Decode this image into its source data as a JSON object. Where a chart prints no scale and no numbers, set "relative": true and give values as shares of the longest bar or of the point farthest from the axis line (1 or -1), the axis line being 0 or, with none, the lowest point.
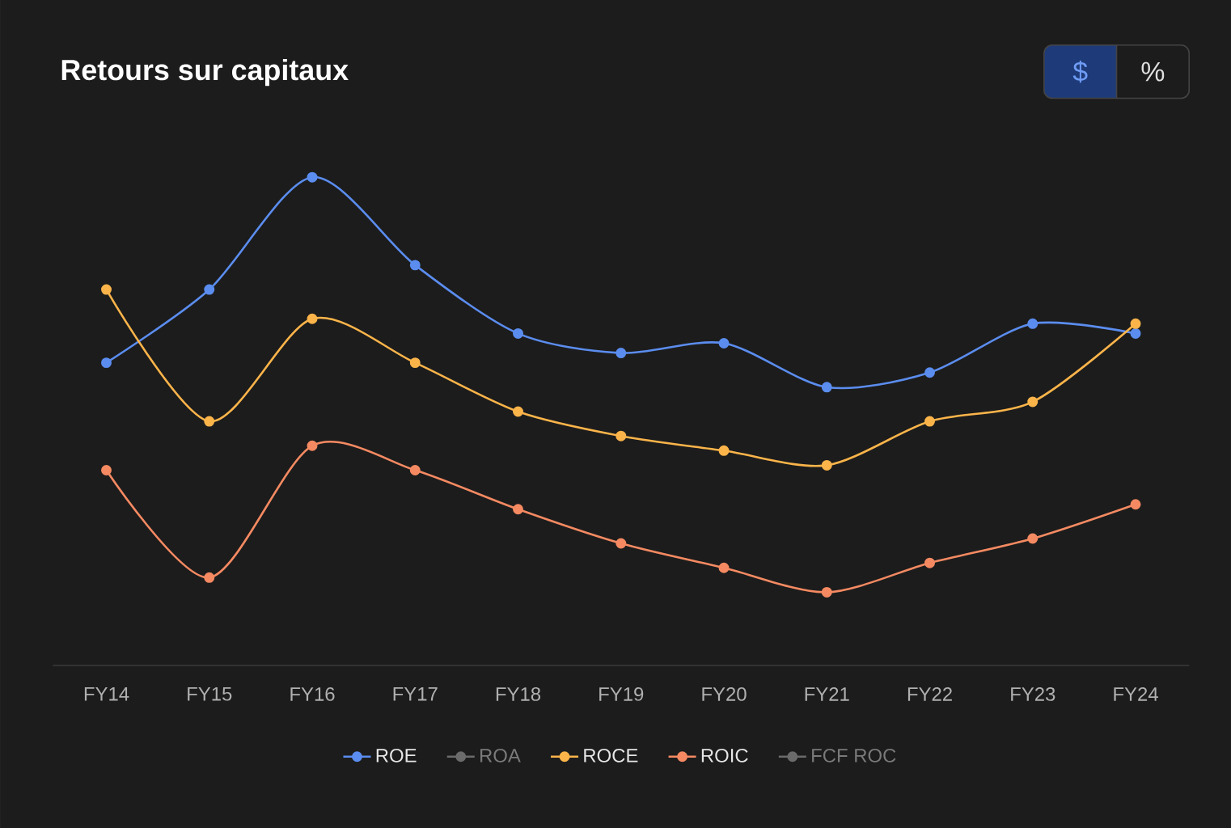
{
  "chart_data": {
    "type": "line",
    "title": "Retours sur capitaux",
    "relative": true,
    "legend": "bottom",
    "marker": "circle",
    "categories": [
      "FY14",
      "FY15",
      "FY16",
      "FY17",
      "FY18",
      "FY19",
      "FY20",
      "FY21",
      "FY22",
      "FY23",
      "FY24"
    ],
    "series": [
      {
        "name": "ROE",
        "color": "#5b8def",
        "values": [
          0.62,
          0.77,
          1.0,
          0.82,
          0.68,
          0.64,
          0.66,
          0.57,
          0.6,
          0.7,
          0.68
        ]
      },
      {
        "name": "ROA",
        "color": "#6b6b6b",
        "values": [
          null,
          null,
          null,
          null,
          null,
          null,
          null,
          null,
          null,
          null,
          null
        ]
      },
      {
        "name": "ROCE",
        "color": "#fbb44a",
        "values": [
          0.77,
          0.5,
          0.71,
          0.62,
          0.52,
          0.47,
          0.44,
          0.41,
          0.5,
          0.54,
          0.7
        ]
      },
      {
        "name": "ROIC",
        "color": "#f58a62",
        "values": [
          0.4,
          0.18,
          0.45,
          0.4,
          0.32,
          0.25,
          0.2,
          0.15,
          0.21,
          0.26,
          0.33
        ]
      },
      {
        "name": "FCF ROC",
        "color": "#6b6b6b",
        "values": [
          null,
          null,
          null,
          null,
          null,
          null,
          null,
          null,
          null,
          null,
          null
        ]
      }
    ],
    "annotations": [
      "$",
      "%"
    ]
  }
}
